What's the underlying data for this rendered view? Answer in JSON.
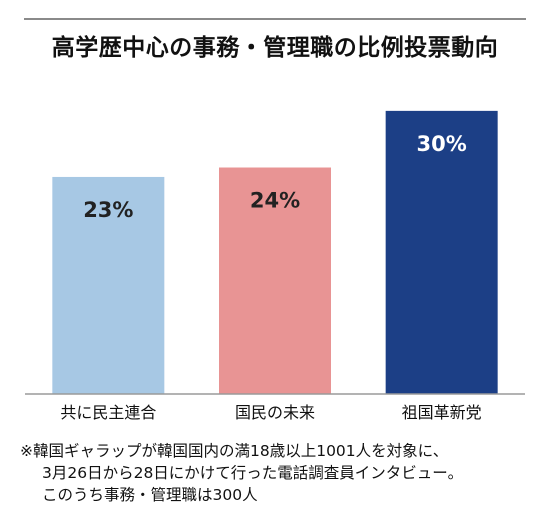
{
  "chart_data": {
    "type": "bar",
    "title": "高学歴中心の事務・管理職の比例投票動向",
    "categories": [
      "共に民主連合",
      "国民の未来",
      "祖国革新党"
    ],
    "values": [
      23,
      24,
      30
    ],
    "value_labels": [
      "23%",
      "24%",
      "30%"
    ],
    "unit": "%",
    "ylim": [
      0,
      32
    ],
    "grid": false,
    "colors": [
      "#a7c8e4",
      "#e89494",
      "#1c3f86"
    ],
    "label_colors": [
      "#222222",
      "#222222",
      "#ffffff"
    ]
  },
  "note": {
    "lines": [
      "※韓国ギャラップが韓国国内の満18歳以上1001人を対象に、",
      "3月26日から28日にかけて行った電話調査員インタビュー。",
      "このうち事務・管理職は300人"
    ]
  }
}
